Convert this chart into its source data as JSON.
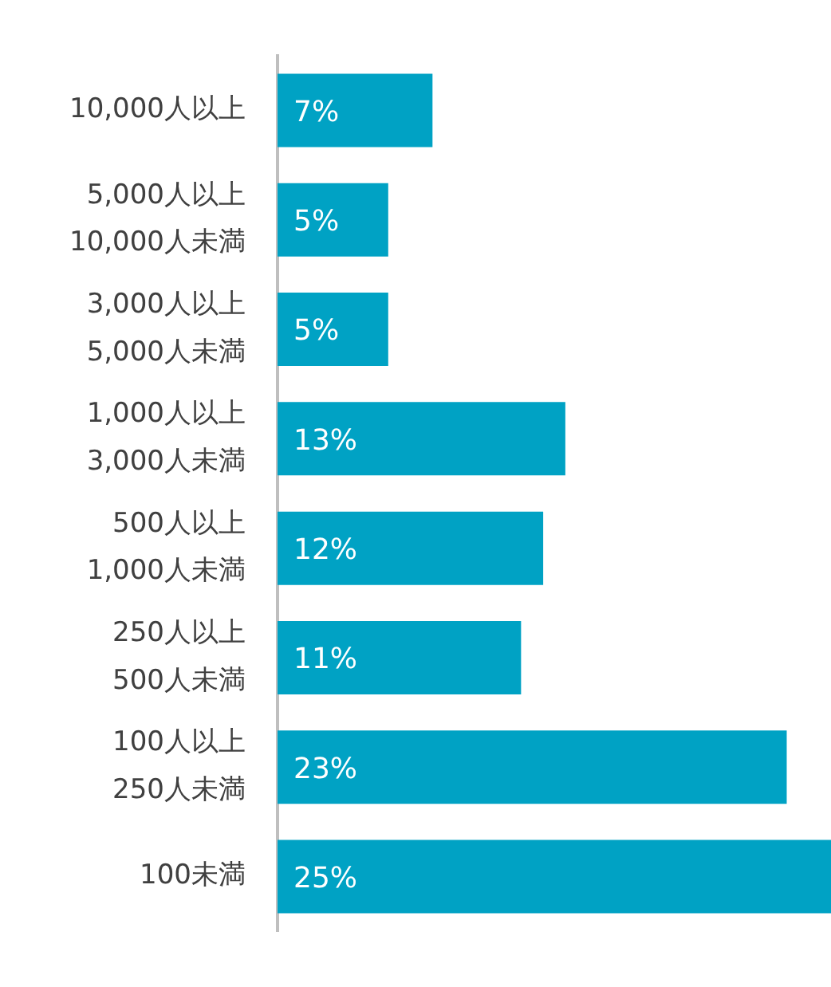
{
  "chart_data": {
    "type": "bar",
    "orientation": "horizontal",
    "categories": [
      "10,000人以上",
      "5,000人以上\n10,000人未満",
      "3,000人以上\n5,000人未満",
      "1,000人以上\n3,000人未満",
      "500人以上\n1,000人未満",
      "250人以上\n500人未満",
      "100人以上\n250人未満",
      "100未満"
    ],
    "values": [
      7,
      5,
      5,
      13,
      12,
      11,
      23,
      25
    ],
    "value_labels": [
      "7%",
      "5%",
      "5%",
      "13%",
      "12%",
      "11%",
      "23%",
      "25%"
    ],
    "color": "#00a2c4",
    "xlim": [
      0,
      25
    ],
    "grid": false,
    "legend": false
  }
}
